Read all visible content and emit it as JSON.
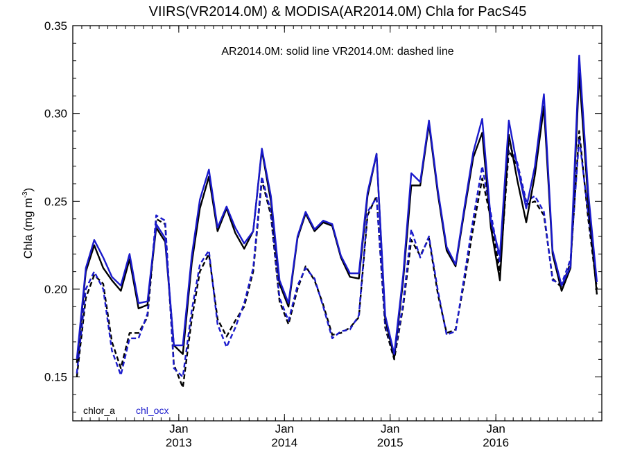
{
  "chart_data": {
    "type": "line",
    "title": "VIIRS(VR2014.0M) & MODISA(AR2014.0M)  Chla for PacS45",
    "annotation": "AR2014.0M: solid line   VR2014.0M: dashed line",
    "ylabel": "Chla (mg m",
    "ylabel_sup": "-3",
    "ylabel_close": ")",
    "ylim": [
      0.125,
      0.35
    ],
    "yticks": [
      0.15,
      0.2,
      0.25,
      0.3,
      0.35
    ],
    "ytick_labels": [
      "0.15",
      "0.20",
      "0.25",
      "0.30",
      "0.35"
    ],
    "x_range": [
      "2012-01-01",
      "2017-01-01"
    ],
    "xticks": [
      {
        "date": "2013-01-01",
        "month": "Jan",
        "year": "2013"
      },
      {
        "date": "2014-01-01",
        "month": "Jan",
        "year": "2014"
      },
      {
        "date": "2015-01-01",
        "month": "Jan",
        "year": "2015"
      },
      {
        "date": "2016-01-01",
        "month": "Jan",
        "year": "2016"
      }
    ],
    "legend": {
      "placement": "bottom-left",
      "entries": [
        "chlor_a",
        "chl_ocx"
      ]
    },
    "colors": {
      "chlor_a": "#000000",
      "chl_ocx": "#1a1acc"
    },
    "x": [
      "2012-01",
      "2012-02",
      "2012-03",
      "2012-04",
      "2012-05",
      "2012-06",
      "2012-07",
      "2012-08",
      "2012-09",
      "2012-10",
      "2012-11",
      "2012-12",
      "2013-01",
      "2013-02",
      "2013-03",
      "2013-04",
      "2013-05",
      "2013-06",
      "2013-07",
      "2013-08",
      "2013-09",
      "2013-10",
      "2013-11",
      "2013-12",
      "2014-01",
      "2014-02",
      "2014-03",
      "2014-04",
      "2014-05",
      "2014-06",
      "2014-07",
      "2014-08",
      "2014-09",
      "2014-10",
      "2014-11",
      "2014-12",
      "2015-01",
      "2015-02",
      "2015-03",
      "2015-04",
      "2015-05",
      "2015-06",
      "2015-07",
      "2015-08",
      "2015-09",
      "2015-10",
      "2015-11",
      "2015-12",
      "2016-01",
      "2016-02",
      "2016-03",
      "2016-04",
      "2016-05",
      "2016-06",
      "2016-07",
      "2016-08",
      "2016-09",
      "2016-10",
      "2016-11",
      "2016-12"
    ],
    "series": [
      {
        "name": "chlor_a",
        "sensor": "AR2014.0M",
        "style": "solid",
        "values": [
          0.158,
          0.21,
          0.225,
          0.212,
          0.205,
          0.199,
          0.217,
          0.189,
          0.191,
          0.235,
          0.227,
          0.168,
          0.163,
          0.215,
          0.246,
          0.264,
          0.233,
          0.246,
          0.232,
          0.223,
          0.233,
          0.279,
          0.25,
          0.203,
          0.19,
          0.229,
          0.243,
          0.233,
          0.238,
          0.236,
          0.218,
          0.207,
          0.206,
          0.253,
          0.277,
          0.183,
          0.161,
          0.205,
          0.259,
          0.259,
          0.294,
          0.254,
          0.222,
          0.213,
          0.245,
          0.275,
          0.289,
          0.235,
          0.205,
          0.288,
          0.262,
          0.238,
          0.265,
          0.304,
          0.22,
          0.199,
          0.212,
          0.323,
          0.25,
          0.197
        ]
      },
      {
        "name": "chl_ocx",
        "sensor": "AR2014.0M",
        "style": "solid",
        "values": [
          0.16,
          0.212,
          0.228,
          0.218,
          0.207,
          0.202,
          0.22,
          0.192,
          0.193,
          0.237,
          0.229,
          0.168,
          0.168,
          0.219,
          0.251,
          0.268,
          0.235,
          0.247,
          0.235,
          0.226,
          0.233,
          0.28,
          0.253,
          0.205,
          0.192,
          0.23,
          0.244,
          0.234,
          0.239,
          0.237,
          0.219,
          0.209,
          0.209,
          0.255,
          0.277,
          0.185,
          0.163,
          0.208,
          0.266,
          0.261,
          0.296,
          0.256,
          0.224,
          0.214,
          0.247,
          0.278,
          0.297,
          0.239,
          0.219,
          0.296,
          0.27,
          0.246,
          0.27,
          0.311,
          0.222,
          0.202,
          0.213,
          0.333,
          0.255,
          0.204
        ]
      },
      {
        "name": "chlor_a",
        "sensor": "VR2014.0M",
        "style": "dashed",
        "values": [
          0.15,
          0.195,
          0.208,
          0.203,
          0.17,
          0.155,
          0.175,
          0.175,
          0.184,
          0.24,
          0.237,
          0.157,
          0.144,
          0.183,
          0.21,
          0.22,
          0.183,
          0.173,
          0.182,
          0.19,
          0.21,
          0.262,
          0.242,
          0.193,
          0.18,
          0.2,
          0.213,
          0.205,
          0.191,
          0.174,
          0.175,
          0.178,
          0.184,
          0.242,
          0.253,
          0.178,
          0.16,
          0.19,
          0.228,
          0.219,
          0.229,
          0.197,
          0.175,
          0.177,
          0.205,
          0.235,
          0.263,
          0.24,
          0.21,
          0.279,
          0.27,
          0.248,
          0.25,
          0.242,
          0.206,
          0.201,
          0.215,
          0.29,
          0.24,
          0.2
        ]
      },
      {
        "name": "chl_ocx",
        "sensor": "VR2014.0M",
        "style": "dashed",
        "values": [
          0.152,
          0.2,
          0.21,
          0.2,
          0.165,
          0.151,
          0.172,
          0.172,
          0.186,
          0.242,
          0.239,
          0.155,
          0.15,
          0.188,
          0.214,
          0.222,
          0.18,
          0.167,
          0.178,
          0.192,
          0.212,
          0.264,
          0.244,
          0.195,
          0.182,
          0.202,
          0.212,
          0.206,
          0.19,
          0.172,
          0.176,
          0.177,
          0.185,
          0.244,
          0.252,
          0.18,
          0.162,
          0.192,
          0.234,
          0.218,
          0.23,
          0.199,
          0.174,
          0.176,
          0.208,
          0.24,
          0.27,
          0.243,
          0.215,
          0.283,
          0.272,
          0.25,
          0.253,
          0.244,
          0.205,
          0.203,
          0.217,
          0.286,
          0.243,
          0.203
        ]
      }
    ]
  }
}
